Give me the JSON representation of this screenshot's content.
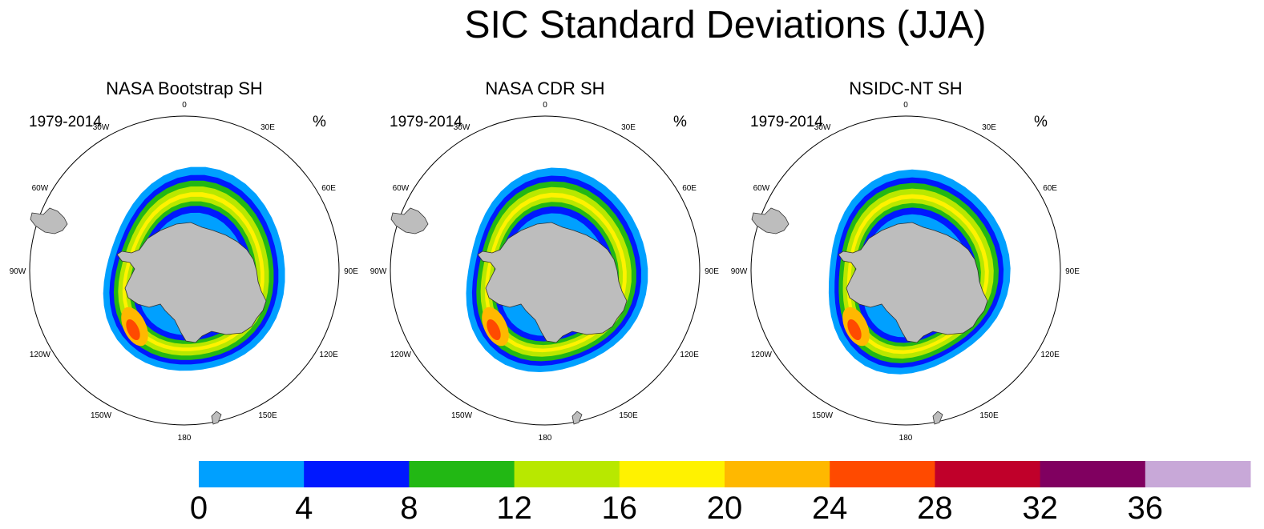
{
  "title": "SIC Standard Deviations (JJA)",
  "colors": {
    "land": "#bdbdbd",
    "outline": "#333333",
    "bins": [
      "#00a0ff",
      "#0018ff",
      "#22b814",
      "#b8e800",
      "#fff200",
      "#ffb800",
      "#ff4a00",
      "#c0002a",
      "#800060",
      "#c8a8d8"
    ]
  },
  "panels": [
    {
      "title": "NASA Bootstrap SH",
      "period": "1979-2014",
      "units": "%"
    },
    {
      "title": "NASA CDR SH",
      "period": "1979-2014",
      "units": "%"
    },
    {
      "title": "NSIDC-NT SH",
      "period": "1979-2014",
      "units": "%"
    }
  ],
  "lon_labels": [
    "0",
    "30E",
    "60E",
    "90E",
    "120E",
    "150E",
    "180",
    "150W",
    "120W",
    "90W",
    "60W",
    "30W"
  ],
  "colorbar": {
    "labels": [
      "0",
      "4",
      "8",
      "12",
      "16",
      "20",
      "24",
      "28",
      "32",
      "36"
    ]
  }
}
